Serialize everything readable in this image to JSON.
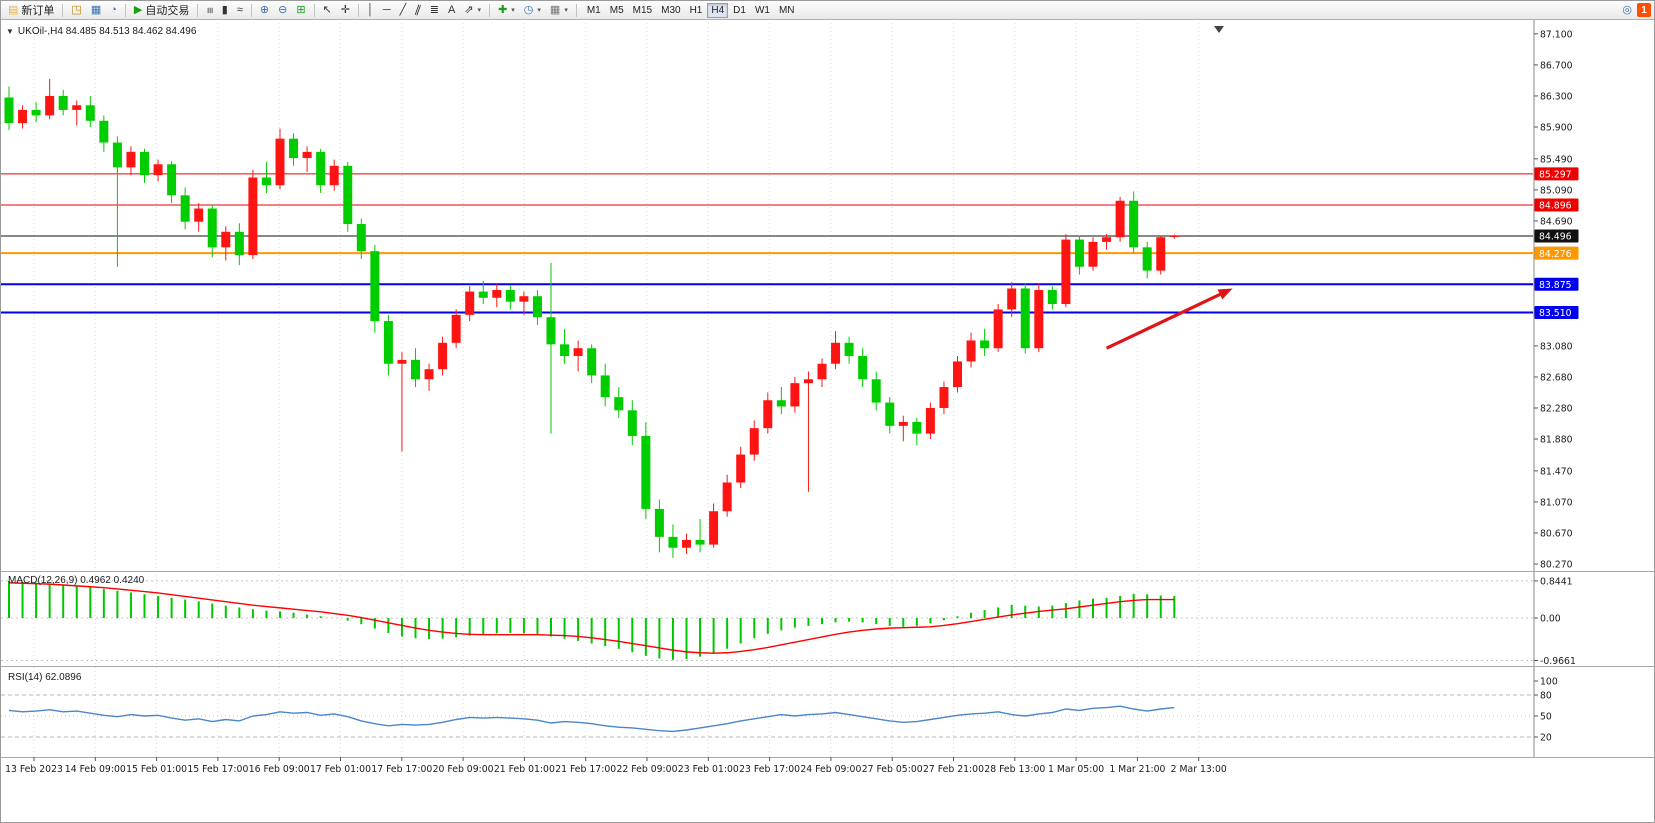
{
  "toolbar": {
    "left_items": [
      {
        "type": "labeled",
        "name": "new-order-button",
        "glyph": "▤",
        "glyph_color": "#e8b23c",
        "label": "新订单"
      },
      {
        "type": "sep"
      },
      {
        "type": "icon",
        "name": "history-center-icon",
        "glyph": "◳",
        "color": "#b8860b"
      },
      {
        "type": "icon",
        "name": "open-chart-icon",
        "glyph": "▦",
        "color": "#3a6fb0"
      },
      {
        "type": "icon",
        "name": "refresh-icon",
        "glyph": "◔",
        "color": "#3a6fb0"
      },
      {
        "type": "sep"
      },
      {
        "type": "labeled",
        "name": "autotrading-button",
        "glyph": "▶",
        "glyph_color": "#18a018",
        "label": "自动交易"
      },
      {
        "type": "sep"
      },
      {
        "type": "icon",
        "name": "bar-chart-icon",
        "glyph": "≡",
        "color": "#333333",
        "rotate": 90
      },
      {
        "type": "icon",
        "name": "candlestick-chart-icon",
        "glyph": "▮",
        "color": "#333333"
      },
      {
        "type": "icon",
        "name": "line-chart-icon",
        "glyph": "≈",
        "color": "#333333"
      },
      {
        "type": "sep"
      },
      {
        "type": "icon",
        "name": "zoom-in-icon",
        "glyph": "⊕",
        "color": "#3a6fb0"
      },
      {
        "type": "icon",
        "name": "zoom-out-icon",
        "glyph": "⊖",
        "color": "#3a6fb0"
      },
      {
        "type": "icon",
        "name": "tile-windows-icon",
        "glyph": "⊞",
        "color": "#18a018"
      },
      {
        "type": "sep"
      },
      {
        "type": "icon",
        "name": "cursor-icon",
        "glyph": "↖",
        "color": "#333333"
      },
      {
        "type": "icon",
        "name": "crosshair-icon",
        "glyph": "✛",
        "color": "#333333"
      },
      {
        "type": "sep"
      },
      {
        "type": "icon",
        "name": "vertical-line-icon",
        "glyph": "│",
        "color": "#333333"
      },
      {
        "type": "icon",
        "name": "horizontal-line-icon",
        "glyph": "─",
        "color": "#333333"
      },
      {
        "type": "icon",
        "name": "trendline-icon",
        "glyph": "╱",
        "color": "#333333"
      },
      {
        "type": "icon",
        "name": "channel-icon",
        "glyph": "∥",
        "color": "#333333",
        "rotate": 20
      },
      {
        "type": "icon",
        "name": "fibonacci-icon",
        "glyph": "≣",
        "color": "#333333"
      },
      {
        "type": "icon",
        "name": "text-tool-icon",
        "glyph": "A",
        "color": "#333333"
      },
      {
        "type": "icon",
        "name": "arrows-tool-icon",
        "glyph": "⇗",
        "color": "#333333",
        "caret": true
      },
      {
        "type": "sep"
      },
      {
        "type": "icon",
        "name": "indicators-icon",
        "glyph": "✚",
        "color": "#18a018",
        "caret": true
      },
      {
        "type": "icon",
        "name": "periods-icon",
        "glyph": "◷",
        "color": "#3a6fb0",
        "caret": true
      },
      {
        "type": "icon",
        "name": "templates-icon",
        "glyph": "▦",
        "color": "#777777",
        "caret": true
      },
      {
        "type": "sep"
      }
    ],
    "timeframes": {
      "items": [
        "M1",
        "M5",
        "M15",
        "M30",
        "H1",
        "H4",
        "D1",
        "W1",
        "MN"
      ],
      "active": "H4"
    },
    "right_items": [
      {
        "type": "icon",
        "name": "search-icon",
        "glyph": "◎",
        "color": "#3a6fb0"
      },
      {
        "type": "badge",
        "name": "notification-badge",
        "label": "1",
        "bg": "#ff4f00"
      }
    ]
  },
  "chart": {
    "collapse_glyph": "▼",
    "title": "UKOil-,H4 84.485 84.513 84.462 84.496"
  },
  "chart_data": {
    "type": "candlestick",
    "symbol": "UKOil-",
    "period": "H4",
    "last_quote": {
      "open": 84.485,
      "high": 84.513,
      "low": 84.462,
      "close": 84.496
    },
    "colors": {
      "bull": "#ff1414",
      "bear": "#00cd00",
      "macd_hist": "#00c800",
      "macd_signal": "#ff0000",
      "rsi_line": "#4a86c8",
      "grid": "#dcdcdc",
      "axis_text": "#1a1a1a"
    },
    "price_axis": {
      "min": 80.18,
      "max": 87.24,
      "ticks": [
        "87.100",
        "86.700",
        "86.300",
        "85.900",
        "85.490",
        "85.090",
        "84.690",
        "83.080",
        "82.680",
        "82.280",
        "81.880",
        "81.470",
        "81.070",
        "80.670",
        "80.270"
      ]
    },
    "levels": [
      {
        "name": "resistance-line-1",
        "value": 85.297,
        "label": "85.297",
        "color": "#ee0000",
        "width": 1
      },
      {
        "name": "resistance-line-2",
        "value": 84.896,
        "label": "84.896",
        "color": "#ee0000",
        "width": 1
      },
      {
        "name": "current-price-line",
        "value": 84.496,
        "label": "84.496",
        "color": "#111111",
        "width": 1
      },
      {
        "name": "pivot-line-orange",
        "value": 84.276,
        "label": "84.276",
        "color": "#ff9800",
        "width": 2
      },
      {
        "name": "support-line-1",
        "value": 83.875,
        "label": "83.875",
        "color": "#0000ee",
        "width": 2
      },
      {
        "name": "support-line-2",
        "value": 83.51,
        "label": "83.510",
        "color": "#0000ee",
        "width": 2
      }
    ],
    "time_labels": [
      "13 Feb 2023",
      "14 Feb 09:00",
      "15 Feb 01:00",
      "15 Feb 17:00",
      "16 Feb 09:00",
      "17 Feb 01:00",
      "17 Feb 17:00",
      "20 Feb 09:00",
      "21 Feb 01:00",
      "21 Feb 17:00",
      "22 Feb 09:00",
      "23 Feb 01:00",
      "23 Feb 17:00",
      "24 Feb 09:00",
      "27 Feb 05:00",
      "27 Feb 21:00",
      "28 Feb 13:00",
      "1 Mar 05:00",
      "1 Mar 21:00",
      "2 Mar 13:00"
    ],
    "candles": [
      [
        86.28,
        86.42,
        85.86,
        85.95
      ],
      [
        85.95,
        86.18,
        85.88,
        86.12
      ],
      [
        86.12,
        86.22,
        85.96,
        86.05
      ],
      [
        86.05,
        86.52,
        86.0,
        86.3
      ],
      [
        86.3,
        86.38,
        86.05,
        86.12
      ],
      [
        86.12,
        86.24,
        85.92,
        86.18
      ],
      [
        86.18,
        86.3,
        85.9,
        85.98
      ],
      [
        85.98,
        86.05,
        85.58,
        85.7
      ],
      [
        85.7,
        85.78,
        84.1,
        85.38
      ],
      [
        85.38,
        85.65,
        85.28,
        85.58
      ],
      [
        85.58,
        85.62,
        85.18,
        85.28
      ],
      [
        85.28,
        85.48,
        85.2,
        85.42
      ],
      [
        85.42,
        85.46,
        84.92,
        85.02
      ],
      [
        85.02,
        85.12,
        84.58,
        84.68
      ],
      [
        84.68,
        84.92,
        84.55,
        84.85
      ],
      [
        84.85,
        84.9,
        84.22,
        84.35
      ],
      [
        84.35,
        84.62,
        84.18,
        84.55
      ],
      [
        84.55,
        84.66,
        84.12,
        84.25
      ],
      [
        84.25,
        85.35,
        84.2,
        85.25
      ],
      [
        85.25,
        85.45,
        85.05,
        85.15
      ],
      [
        85.15,
        85.88,
        85.1,
        85.75
      ],
      [
        85.75,
        85.82,
        85.4,
        85.5
      ],
      [
        85.5,
        85.65,
        85.32,
        85.58
      ],
      [
        85.58,
        85.62,
        85.05,
        85.15
      ],
      [
        85.15,
        85.48,
        85.08,
        85.4
      ],
      [
        85.4,
        85.45,
        84.55,
        84.65
      ],
      [
        84.65,
        84.72,
        84.2,
        84.3
      ],
      [
        84.3,
        84.38,
        83.25,
        83.4
      ],
      [
        83.4,
        83.48,
        82.7,
        82.85
      ],
      [
        82.85,
        83.0,
        81.72,
        82.9
      ],
      [
        82.9,
        83.05,
        82.55,
        82.65
      ],
      [
        82.65,
        82.85,
        82.5,
        82.78
      ],
      [
        82.78,
        83.2,
        82.7,
        83.12
      ],
      [
        83.12,
        83.55,
        83.05,
        83.48
      ],
      [
        83.48,
        83.85,
        83.4,
        83.78
      ],
      [
        83.78,
        83.92,
        83.62,
        83.7
      ],
      [
        83.7,
        83.88,
        83.58,
        83.8
      ],
      [
        83.8,
        83.86,
        83.55,
        83.65
      ],
      [
        83.65,
        83.78,
        83.48,
        83.72
      ],
      [
        83.72,
        83.8,
        83.35,
        83.45
      ],
      [
        83.45,
        84.15,
        81.95,
        83.1
      ],
      [
        83.1,
        83.3,
        82.85,
        82.95
      ],
      [
        82.95,
        83.15,
        82.75,
        83.05
      ],
      [
        83.05,
        83.1,
        82.6,
        82.7
      ],
      [
        82.7,
        82.85,
        82.3,
        82.42
      ],
      [
        82.42,
        82.55,
        82.15,
        82.25
      ],
      [
        82.25,
        82.38,
        81.8,
        81.92
      ],
      [
        81.92,
        82.1,
        80.85,
        80.98
      ],
      [
        80.98,
        81.1,
        80.42,
        80.62
      ],
      [
        80.62,
        80.78,
        80.35,
        80.48
      ],
      [
        80.48,
        80.66,
        80.4,
        80.58
      ],
      [
        80.58,
        80.85,
        80.42,
        80.52
      ],
      [
        80.52,
        81.05,
        80.48,
        80.95
      ],
      [
        80.95,
        81.42,
        80.88,
        81.32
      ],
      [
        81.32,
        81.78,
        81.25,
        81.68
      ],
      [
        81.68,
        82.12,
        81.6,
        82.02
      ],
      [
        82.02,
        82.48,
        81.95,
        82.38
      ],
      [
        82.38,
        82.55,
        82.2,
        82.3
      ],
      [
        82.3,
        82.68,
        82.22,
        82.6
      ],
      [
        82.6,
        82.75,
        81.2,
        82.65
      ],
      [
        82.65,
        82.92,
        82.55,
        82.85
      ],
      [
        82.85,
        83.27,
        82.78,
        83.12
      ],
      [
        83.12,
        83.2,
        82.85,
        82.95
      ],
      [
        82.95,
        83.05,
        82.55,
        82.65
      ],
      [
        82.65,
        82.75,
        82.25,
        82.35
      ],
      [
        82.35,
        82.42,
        81.95,
        82.05
      ],
      [
        82.05,
        82.18,
        81.85,
        82.1
      ],
      [
        82.1,
        82.15,
        81.8,
        81.95
      ],
      [
        81.95,
        82.35,
        81.88,
        82.28
      ],
      [
        82.28,
        82.62,
        82.2,
        82.55
      ],
      [
        82.55,
        82.95,
        82.48,
        82.88
      ],
      [
        82.88,
        83.25,
        82.8,
        83.15
      ],
      [
        83.15,
        83.3,
        82.95,
        83.05
      ],
      [
        83.05,
        83.62,
        83.0,
        83.55
      ],
      [
        83.55,
        83.9,
        83.45,
        83.82
      ],
      [
        83.82,
        83.88,
        82.98,
        83.05
      ],
      [
        83.05,
        83.88,
        83.0,
        83.8
      ],
      [
        83.8,
        83.85,
        83.55,
        83.62
      ],
      [
        83.62,
        84.52,
        83.58,
        84.45
      ],
      [
        84.45,
        84.5,
        84.0,
        84.1
      ],
      [
        84.1,
        84.48,
        84.05,
        84.42
      ],
      [
        84.42,
        84.52,
        84.32,
        84.48
      ],
      [
        84.48,
        85.0,
        84.42,
        84.95
      ],
      [
        84.95,
        85.07,
        84.28,
        84.35
      ],
      [
        84.35,
        84.42,
        83.95,
        84.05
      ],
      [
        84.05,
        84.5,
        84.0,
        84.48
      ],
      [
        84.485,
        84.513,
        84.462,
        84.496
      ]
    ],
    "arrow": {
      "from_index": 81,
      "from_price": 83.05,
      "to_index": 90.3,
      "to_price": 83.82,
      "color": "#e01414",
      "width": 3.2
    },
    "macd": {
      "label": "MACD(12,26,9) 0.4962 0.4240",
      "value_main": 0.4962,
      "value_signal": 0.424,
      "axis_labels": [
        {
          "text": "0.8441",
          "value": 0.8441
        },
        {
          "text": "0.00",
          "value": 0
        },
        {
          "text": "-0.9661",
          "value": -0.9661
        }
      ],
      "histogram": [
        0.84,
        0.82,
        0.8,
        0.78,
        0.75,
        0.72,
        0.7,
        0.66,
        0.62,
        0.58,
        0.54,
        0.5,
        0.46,
        0.42,
        0.38,
        0.33,
        0.28,
        0.24,
        0.2,
        0.17,
        0.15,
        0.12,
        0.08,
        0.04,
        0.0,
        -0.06,
        -0.14,
        -0.24,
        -0.34,
        -0.42,
        -0.46,
        -0.48,
        -0.47,
        -0.44,
        -0.4,
        -0.37,
        -0.35,
        -0.34,
        -0.35,
        -0.38,
        -0.42,
        -0.47,
        -0.52,
        -0.58,
        -0.64,
        -0.7,
        -0.78,
        -0.86,
        -0.92,
        -0.95,
        -0.93,
        -0.88,
        -0.8,
        -0.7,
        -0.58,
        -0.46,
        -0.36,
        -0.28,
        -0.22,
        -0.18,
        -0.14,
        -0.1,
        -0.08,
        -0.1,
        -0.14,
        -0.18,
        -0.2,
        -0.18,
        -0.12,
        -0.05,
        0.04,
        0.12,
        0.18,
        0.24,
        0.3,
        0.28,
        0.26,
        0.28,
        0.34,
        0.4,
        0.44,
        0.46,
        0.5,
        0.55,
        0.54,
        0.51,
        0.5
      ],
      "signal": [
        0.8,
        0.79,
        0.78,
        0.77,
        0.75,
        0.73,
        0.71,
        0.69,
        0.66,
        0.63,
        0.6,
        0.57,
        0.53,
        0.49,
        0.45,
        0.41,
        0.37,
        0.33,
        0.29,
        0.26,
        0.23,
        0.2,
        0.17,
        0.14,
        0.1,
        0.06,
        0.01,
        -0.05,
        -0.11,
        -0.17,
        -0.23,
        -0.28,
        -0.32,
        -0.35,
        -0.37,
        -0.38,
        -0.38,
        -0.38,
        -0.38,
        -0.38,
        -0.39,
        -0.4,
        -0.42,
        -0.45,
        -0.49,
        -0.53,
        -0.58,
        -0.63,
        -0.68,
        -0.73,
        -0.77,
        -0.79,
        -0.8,
        -0.79,
        -0.76,
        -0.72,
        -0.67,
        -0.61,
        -0.55,
        -0.49,
        -0.43,
        -0.37,
        -0.32,
        -0.28,
        -0.25,
        -0.23,
        -0.22,
        -0.21,
        -0.2,
        -0.17,
        -0.13,
        -0.08,
        -0.03,
        0.02,
        0.07,
        0.11,
        0.15,
        0.18,
        0.21,
        0.25,
        0.29,
        0.33,
        0.37,
        0.4,
        0.42,
        0.42,
        0.42
      ]
    },
    "rsi": {
      "label": "RSI(14) 62.0896",
      "value": 62.0896,
      "axis_labels": [
        {
          "text": "100",
          "value": 100
        },
        {
          "text": "80",
          "value": 80
        },
        {
          "text": "50",
          "value": 50
        },
        {
          "text": "20",
          "value": 20
        }
      ],
      "dashed_levels": [
        80,
        20
      ],
      "dotted_levels": [
        50
      ],
      "values": [
        58,
        56,
        57,
        59,
        56,
        57,
        54,
        51,
        49,
        52,
        50,
        51,
        47,
        44,
        46,
        42,
        45,
        43,
        50,
        52,
        56,
        54,
        55,
        51,
        53,
        49,
        43,
        39,
        36,
        38,
        37,
        38,
        41,
        45,
        48,
        47,
        48,
        47,
        46,
        44,
        40,
        42,
        41,
        39,
        36,
        34,
        33,
        31,
        29,
        28,
        30,
        33,
        36,
        39,
        43,
        46,
        49,
        52,
        50,
        52,
        53,
        55,
        52,
        49,
        46,
        43,
        41,
        42,
        45,
        48,
        51,
        53,
        54,
        56,
        52,
        50,
        53,
        55,
        60,
        58,
        61,
        62,
        64,
        60,
        57,
        60,
        62.09
      ]
    }
  }
}
